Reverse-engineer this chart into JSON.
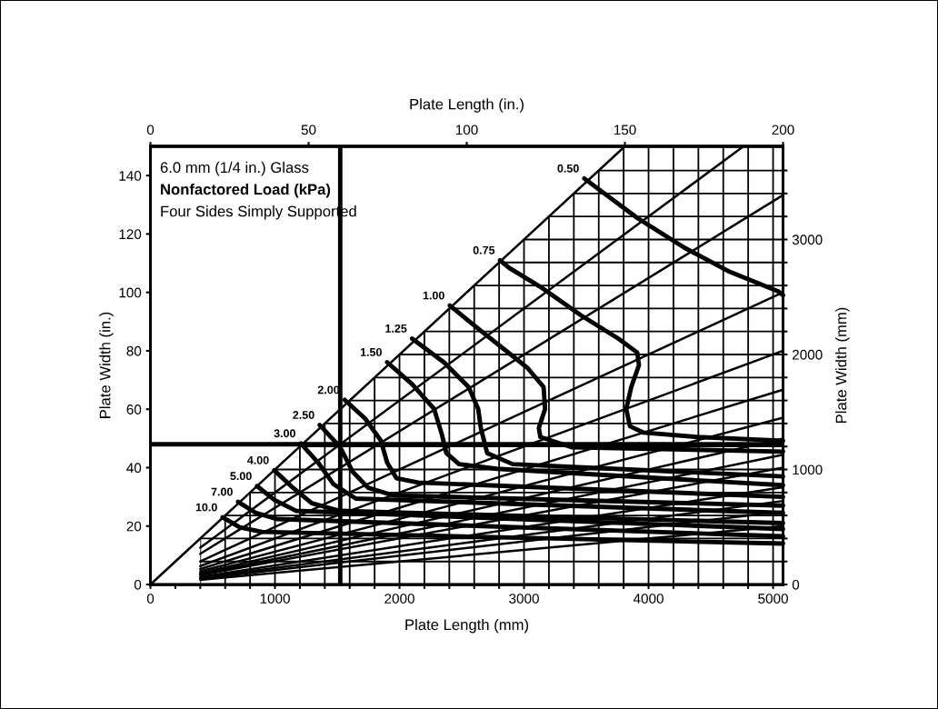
{
  "chart_data": {
    "type": "line",
    "xlabel": "Plate Length (mm)",
    "x2label": "Plate Length (in.)",
    "ylabel": "Plate Width (in.)",
    "y2label": "Plate Width (mm)",
    "xlim": [
      0,
      5080
    ],
    "xticks": [
      0,
      {
        "value": 200,
        "label": null
      },
      {
        "value": 400,
        "label": null
      },
      {
        "value": 600,
        "label": null
      },
      {
        "value": 800,
        "label": null
      },
      1000,
      {
        "value": 1200,
        "label": null
      },
      {
        "value": 1400,
        "label": null
      },
      {
        "value": 1600,
        "label": null
      },
      {
        "value": 1800,
        "label": null
      },
      2000,
      {
        "value": 2200,
        "label": null
      },
      {
        "value": 2400,
        "label": null
      },
      {
        "value": 2600,
        "label": null
      },
      {
        "value": 2800,
        "label": null
      },
      3000,
      {
        "value": 3200,
        "label": null
      },
      {
        "value": 3400,
        "label": null
      },
      {
        "value": 3600,
        "label": null
      },
      {
        "value": 3800,
        "label": null
      },
      4000,
      {
        "value": 4200,
        "label": null
      },
      {
        "value": 4400,
        "label": null
      },
      {
        "value": 4600,
        "label": null
      },
      {
        "value": 4800,
        "label": null
      },
      5000
    ],
    "x2lim": [
      0,
      200
    ],
    "x2ticks": [
      0,
      50,
      100,
      150,
      200
    ],
    "ylim": [
      0,
      150
    ],
    "yticks": [
      0,
      20,
      40,
      60,
      80,
      100,
      120,
      140
    ],
    "y2lim": [
      0,
      3810
    ],
    "y2ticks": [
      0,
      {
        "value": 200,
        "label": null
      },
      {
        "value": 400,
        "label": null
      },
      {
        "value": 600,
        "label": null
      },
      {
        "value": 800,
        "label": null
      },
      1000,
      {
        "value": 1200,
        "label": null
      },
      {
        "value": 1400,
        "label": null
      },
      {
        "value": 1600,
        "label": null
      },
      {
        "value": 1800,
        "label": null
      },
      2000,
      {
        "value": 2200,
        "label": null
      },
      {
        "value": 2400,
        "label": null
      },
      {
        "value": 2600,
        "label": null
      },
      {
        "value": 2800,
        "label": null
      },
      3000,
      {
        "value": 3200,
        "label": null
      },
      {
        "value": 3400,
        "label": null
      },
      {
        "value": 3600,
        "label": null
      }
    ],
    "grid": true,
    "legend": false,
    "annotations": [
      "6.0 mm (1/4 in.) Glass",
      "Nonfactored Load (kPa)",
      "Four Sides Simply Supported"
    ],
    "ref_lines": [
      {
        "axis": "x",
        "value": 1524,
        "color": "#000000"
      },
      {
        "axis": "y",
        "value": 48,
        "color": "#000000"
      }
    ],
    "series": [
      {
        "color": "#000000",
        "x": [
          0,
          3810
        ],
        "values": [
          0,
          150
        ]
      },
      {
        "color": "#000000",
        "x": [
          400,
          4762
        ],
        "values": [
          12.6,
          150
        ]
      },
      {
        "color": "#000000",
        "x": [
          400,
          5080
        ],
        "values": [
          10.5,
          133.3
        ]
      },
      {
        "color": "#000000",
        "x": [
          400,
          5080
        ],
        "values": [
          7.9,
          100
        ]
      },
      {
        "color": "#000000",
        "x": [
          400,
          5080
        ],
        "values": [
          6.3,
          80
        ]
      },
      {
        "color": "#000000",
        "x": [
          400,
          5080
        ],
        "values": [
          5.3,
          66.7
        ]
      },
      {
        "color": "#000000",
        "x": [
          400,
          5080
        ],
        "values": [
          4.5,
          57.1
        ]
      },
      {
        "color": "#000000",
        "x": [
          400,
          5080
        ],
        "values": [
          3.9,
          50
        ]
      },
      {
        "color": "#000000",
        "x": [
          400,
          5080
        ],
        "values": [
          3.5,
          44.4
        ]
      },
      {
        "color": "#000000",
        "x": [
          400,
          5080
        ],
        "values": [
          3.2,
          40
        ]
      },
      {
        "color": "#000000",
        "x": [
          400,
          5080
        ],
        "values": [
          2.6,
          33.3
        ]
      },
      {
        "color": "#000000",
        "x": [
          400,
          5080
        ],
        "values": [
          2.3,
          28.6
        ]
      },
      {
        "color": "#000000",
        "x": [
          400,
          5080
        ],
        "values": [
          2.0,
          25
        ]
      },
      {
        "color": "#000000",
        "x": [
          400,
          5080
        ],
        "values": [
          1.6,
          20
        ]
      },
      {
        "name": "0.50",
        "color": "#000000",
        "x": [
          3484,
          3909,
          4288,
          4639,
          5045,
          5080
        ],
        "values": [
          139,
          125.5,
          115.3,
          107.3,
          100.3,
          99
        ]
      },
      {
        "name": "0.75",
        "color": "#000000",
        "x": [
          2807,
          2880,
          3131,
          3456,
          3760,
          3909,
          3923,
          3861,
          3821,
          3850,
          3960,
          4391,
          5080
        ],
        "values": [
          111,
          108.4,
          101.9,
          92.2,
          84.1,
          79.4,
          75.1,
          67.6,
          60.1,
          54.2,
          52,
          50.5,
          49.2
        ]
      },
      {
        "name": "1.00",
        "color": "#000000",
        "x": [
          2404,
          2653,
          2900,
          3031,
          3157,
          3169,
          3119,
          3131,
          3383,
          5080
        ],
        "values": [
          95.5,
          86.9,
          78.5,
          74,
          67.6,
          60.1,
          53.6,
          50.5,
          47,
          45.5
        ]
      },
      {
        "name": "1.25",
        "color": "#000000",
        "x": [
          2101,
          2356,
          2555,
          2632,
          2653,
          2704,
          2909,
          5080
        ],
        "values": [
          84.2,
          76.1,
          67.6,
          60.1,
          53.6,
          45,
          41.2,
          37
        ]
      },
      {
        "name": "1.50",
        "color": "#000000",
        "x": [
          1901,
          2101,
          2278,
          2340,
          2376,
          2478,
          2782,
          5080
        ],
        "values": [
          76.1,
          68.6,
          60.1,
          51.4,
          45,
          41.2,
          39.6,
          34
        ]
      },
      {
        "name": "2.00",
        "color": "#000000",
        "x": [
          1560,
          1724,
          1850,
          1901,
          1975,
          2150,
          5080
        ],
        "values": [
          63.2,
          56.8,
          49.3,
          41.7,
          36.4,
          34.9,
          30
        ]
      },
      {
        "name": "2.50",
        "color": "#000000",
        "x": [
          1359,
          1522,
          1624,
          1748,
          1951,
          5080
        ],
        "values": [
          54.6,
          47.1,
          38.6,
          33.1,
          30.5,
          27
        ]
      },
      {
        "name": "3.00",
        "color": "#000000",
        "x": [
          1208,
          1347,
          1471,
          1649,
          5080
        ],
        "values": [
          48.3,
          41.7,
          34.3,
          29.4,
          24.5
        ]
      },
      {
        "name": "4.00",
        "color": "#000000",
        "x": [
          994,
          1145,
          1296,
          1522,
          5080
        ],
        "values": [
          39.1,
          33.1,
          27.8,
          25.2,
          21
        ]
      },
      {
        "name": "5.00",
        "color": "#000000",
        "x": [
          856,
          994,
          1171,
          5080
        ],
        "values": [
          33.7,
          29,
          25.2,
          19
        ]
      },
      {
        "name": "7.00",
        "color": "#000000",
        "x": [
          704,
          843,
          1018,
          5080
        ],
        "values": [
          28.3,
          24.6,
          22.4,
          16.5
        ]
      },
      {
        "name": "10.0",
        "color": "#000000",
        "x": [
          579,
          717,
          894,
          5080
        ],
        "values": [
          23,
          19.6,
          18,
          14
        ]
      }
    ]
  }
}
